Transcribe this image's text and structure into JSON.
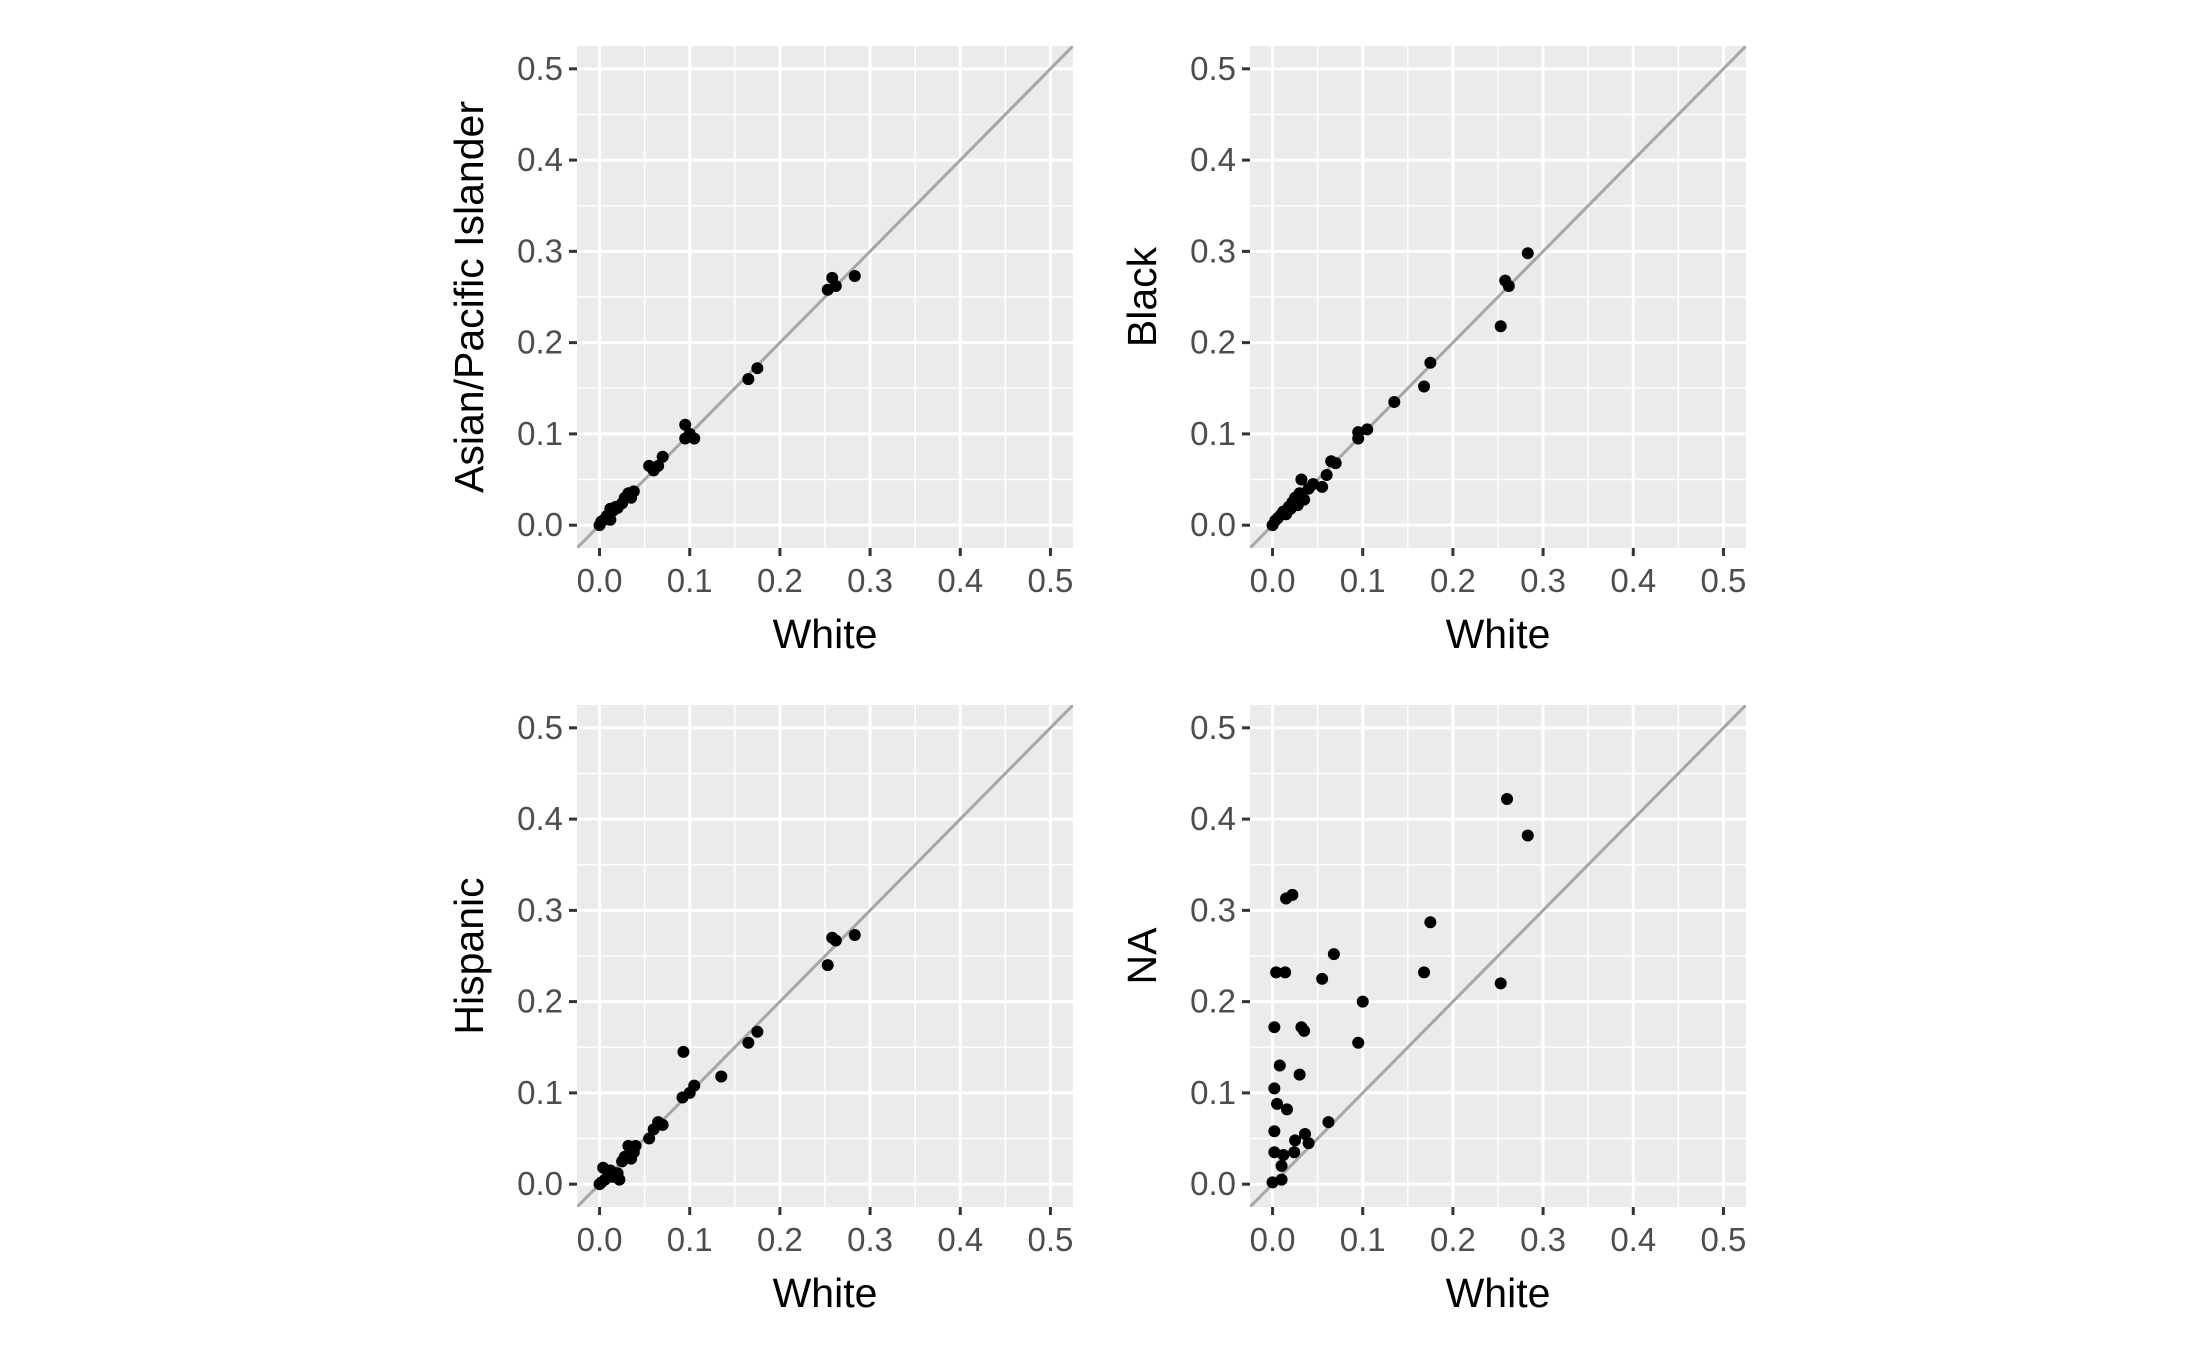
{
  "chart_data": [
    {
      "type": "scatter",
      "xlabel": "White",
      "ylabel": "Asian/Pacific Islander",
      "xlim": [
        -0.025,
        0.525
      ],
      "ylim": [
        -0.025,
        0.525
      ],
      "x_ticks": [
        "0.0",
        "0.1",
        "0.2",
        "0.3",
        "0.4",
        "0.5"
      ],
      "y_ticks": [
        "0.0",
        "0.1",
        "0.2",
        "0.3",
        "0.4",
        "0.5"
      ],
      "reference_line": "y = x",
      "grid": true,
      "points": [
        [
          0.0,
          0.0
        ],
        [
          0.002,
          0.004
        ],
        [
          0.005,
          0.006
        ],
        [
          0.008,
          0.01
        ],
        [
          0.01,
          0.008
        ],
        [
          0.012,
          0.018
        ],
        [
          0.015,
          0.016
        ],
        [
          0.018,
          0.02
        ],
        [
          0.02,
          0.019
        ],
        [
          0.025,
          0.024
        ],
        [
          0.028,
          0.03
        ],
        [
          0.032,
          0.035
        ],
        [
          0.035,
          0.03
        ],
        [
          0.038,
          0.037
        ],
        [
          0.012,
          0.006
        ],
        [
          0.055,
          0.065
        ],
        [
          0.06,
          0.06
        ],
        [
          0.065,
          0.065
        ],
        [
          0.07,
          0.075
        ],
        [
          0.095,
          0.095
        ],
        [
          0.095,
          0.11
        ],
        [
          0.1,
          0.1
        ],
        [
          0.105,
          0.095
        ],
        [
          0.165,
          0.16
        ],
        [
          0.175,
          0.172
        ],
        [
          0.253,
          0.258
        ],
        [
          0.258,
          0.271
        ],
        [
          0.262,
          0.262
        ],
        [
          0.283,
          0.273
        ]
      ]
    },
    {
      "type": "scatter",
      "xlabel": "White",
      "ylabel": "Black",
      "xlim": [
        -0.025,
        0.525
      ],
      "ylim": [
        -0.025,
        0.525
      ],
      "x_ticks": [
        "0.0",
        "0.1",
        "0.2",
        "0.3",
        "0.4",
        "0.5"
      ],
      "y_ticks": [
        "0.0",
        "0.1",
        "0.2",
        "0.3",
        "0.4",
        "0.5"
      ],
      "reference_line": "y = x",
      "grid": true,
      "points": [
        [
          0.0,
          0.0
        ],
        [
          0.003,
          0.005
        ],
        [
          0.006,
          0.008
        ],
        [
          0.01,
          0.012
        ],
        [
          0.012,
          0.015
        ],
        [
          0.015,
          0.012
        ],
        [
          0.018,
          0.02
        ],
        [
          0.02,
          0.018
        ],
        [
          0.022,
          0.025
        ],
        [
          0.025,
          0.03
        ],
        [
          0.028,
          0.022
        ],
        [
          0.03,
          0.035
        ],
        [
          0.032,
          0.05
        ],
        [
          0.035,
          0.028
        ],
        [
          0.04,
          0.04
        ],
        [
          0.045,
          0.045
        ],
        [
          0.055,
          0.042
        ],
        [
          0.06,
          0.055
        ],
        [
          0.065,
          0.07
        ],
        [
          0.07,
          0.068
        ],
        [
          0.095,
          0.095
        ],
        [
          0.095,
          0.102
        ],
        [
          0.105,
          0.105
        ],
        [
          0.135,
          0.135
        ],
        [
          0.168,
          0.152
        ],
        [
          0.175,
          0.178
        ],
        [
          0.253,
          0.218
        ],
        [
          0.258,
          0.268
        ],
        [
          0.262,
          0.262
        ],
        [
          0.283,
          0.298
        ]
      ]
    },
    {
      "type": "scatter",
      "xlabel": "White",
      "ylabel": "Hispanic",
      "xlim": [
        -0.025,
        0.525
      ],
      "ylim": [
        -0.025,
        0.525
      ],
      "x_ticks": [
        "0.0",
        "0.1",
        "0.2",
        "0.3",
        "0.4",
        "0.5"
      ],
      "y_ticks": [
        "0.0",
        "0.1",
        "0.2",
        "0.3",
        "0.4",
        "0.5"
      ],
      "reference_line": "y = x",
      "grid": true,
      "points": [
        [
          0.0,
          0.0
        ],
        [
          0.002,
          0.002
        ],
        [
          0.004,
          0.018
        ],
        [
          0.006,
          0.005
        ],
        [
          0.01,
          0.01
        ],
        [
          0.012,
          0.015
        ],
        [
          0.015,
          0.008
        ],
        [
          0.02,
          0.012
        ],
        [
          0.022,
          0.005
        ],
        [
          0.025,
          0.025
        ],
        [
          0.028,
          0.03
        ],
        [
          0.032,
          0.042
        ],
        [
          0.035,
          0.028
        ],
        [
          0.038,
          0.035
        ],
        [
          0.04,
          0.042
        ],
        [
          0.055,
          0.05
        ],
        [
          0.06,
          0.06
        ],
        [
          0.065,
          0.068
        ],
        [
          0.07,
          0.065
        ],
        [
          0.092,
          0.095
        ],
        [
          0.093,
          0.145
        ],
        [
          0.1,
          0.1
        ],
        [
          0.105,
          0.108
        ],
        [
          0.135,
          0.118
        ],
        [
          0.165,
          0.155
        ],
        [
          0.175,
          0.167
        ],
        [
          0.253,
          0.24
        ],
        [
          0.258,
          0.27
        ],
        [
          0.262,
          0.267
        ],
        [
          0.283,
          0.273
        ]
      ]
    },
    {
      "type": "scatter",
      "xlabel": "White",
      "ylabel": "NA",
      "xlim": [
        -0.025,
        0.525
      ],
      "ylim": [
        -0.025,
        0.525
      ],
      "x_ticks": [
        "0.0",
        "0.1",
        "0.2",
        "0.3",
        "0.4",
        "0.5"
      ],
      "y_ticks": [
        "0.0",
        "0.1",
        "0.2",
        "0.3",
        "0.4",
        "0.5"
      ],
      "reference_line": "y = x",
      "grid": true,
      "points": [
        [
          0.0,
          0.002
        ],
        [
          0.002,
          0.035
        ],
        [
          0.002,
          0.058
        ],
        [
          0.002,
          0.105
        ],
        [
          0.002,
          0.172
        ],
        [
          0.004,
          0.232
        ],
        [
          0.005,
          0.088
        ],
        [
          0.008,
          0.13
        ],
        [
          0.01,
          0.02
        ],
        [
          0.01,
          0.005
        ],
        [
          0.012,
          0.032
        ],
        [
          0.014,
          0.232
        ],
        [
          0.015,
          0.313
        ],
        [
          0.016,
          0.082
        ],
        [
          0.022,
          0.317
        ],
        [
          0.024,
          0.035
        ],
        [
          0.025,
          0.048
        ],
        [
          0.03,
          0.12
        ],
        [
          0.032,
          0.172
        ],
        [
          0.035,
          0.168
        ],
        [
          0.036,
          0.055
        ],
        [
          0.04,
          0.045
        ],
        [
          0.055,
          0.225
        ],
        [
          0.062,
          0.068
        ],
        [
          0.068,
          0.252
        ],
        [
          0.095,
          0.155
        ],
        [
          0.1,
          0.2
        ],
        [
          0.168,
          0.232
        ],
        [
          0.175,
          0.287
        ],
        [
          0.253,
          0.22
        ],
        [
          0.26,
          0.422
        ],
        [
          0.283,
          0.382
        ]
      ]
    }
  ]
}
